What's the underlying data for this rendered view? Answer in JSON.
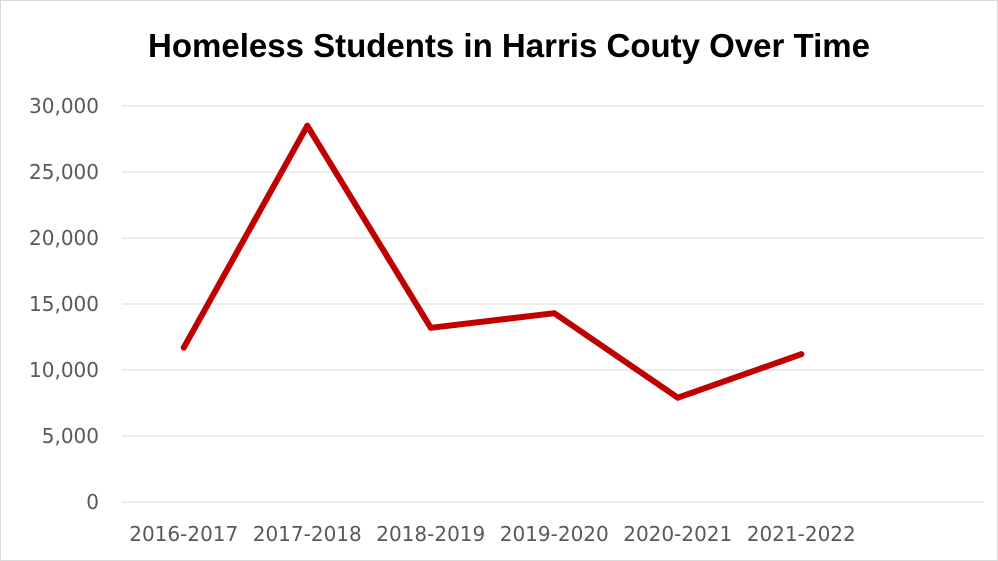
{
  "chart_data": {
    "type": "line",
    "title": "Homeless Students in Harris Couty Over Time",
    "categories": [
      "2016-2017",
      "2017-2018",
      "2018-2019",
      "2019-2020",
      "2020-2021",
      "2021-2022"
    ],
    "series": [
      {
        "values": [
          11700,
          28500,
          13200,
          14300,
          7900,
          11200
        ]
      }
    ],
    "y_ticks": [
      "0",
      "5,000",
      "10,000",
      "15,000",
      "20,000",
      "25,000",
      "30,000"
    ],
    "ylim": [
      0,
      30000
    ],
    "xlabel": "",
    "ylabel": "",
    "grid": true,
    "legend": "none",
    "line_color": "#C00000",
    "grid_color": "#D9D9D9",
    "label_color": "#595959"
  }
}
